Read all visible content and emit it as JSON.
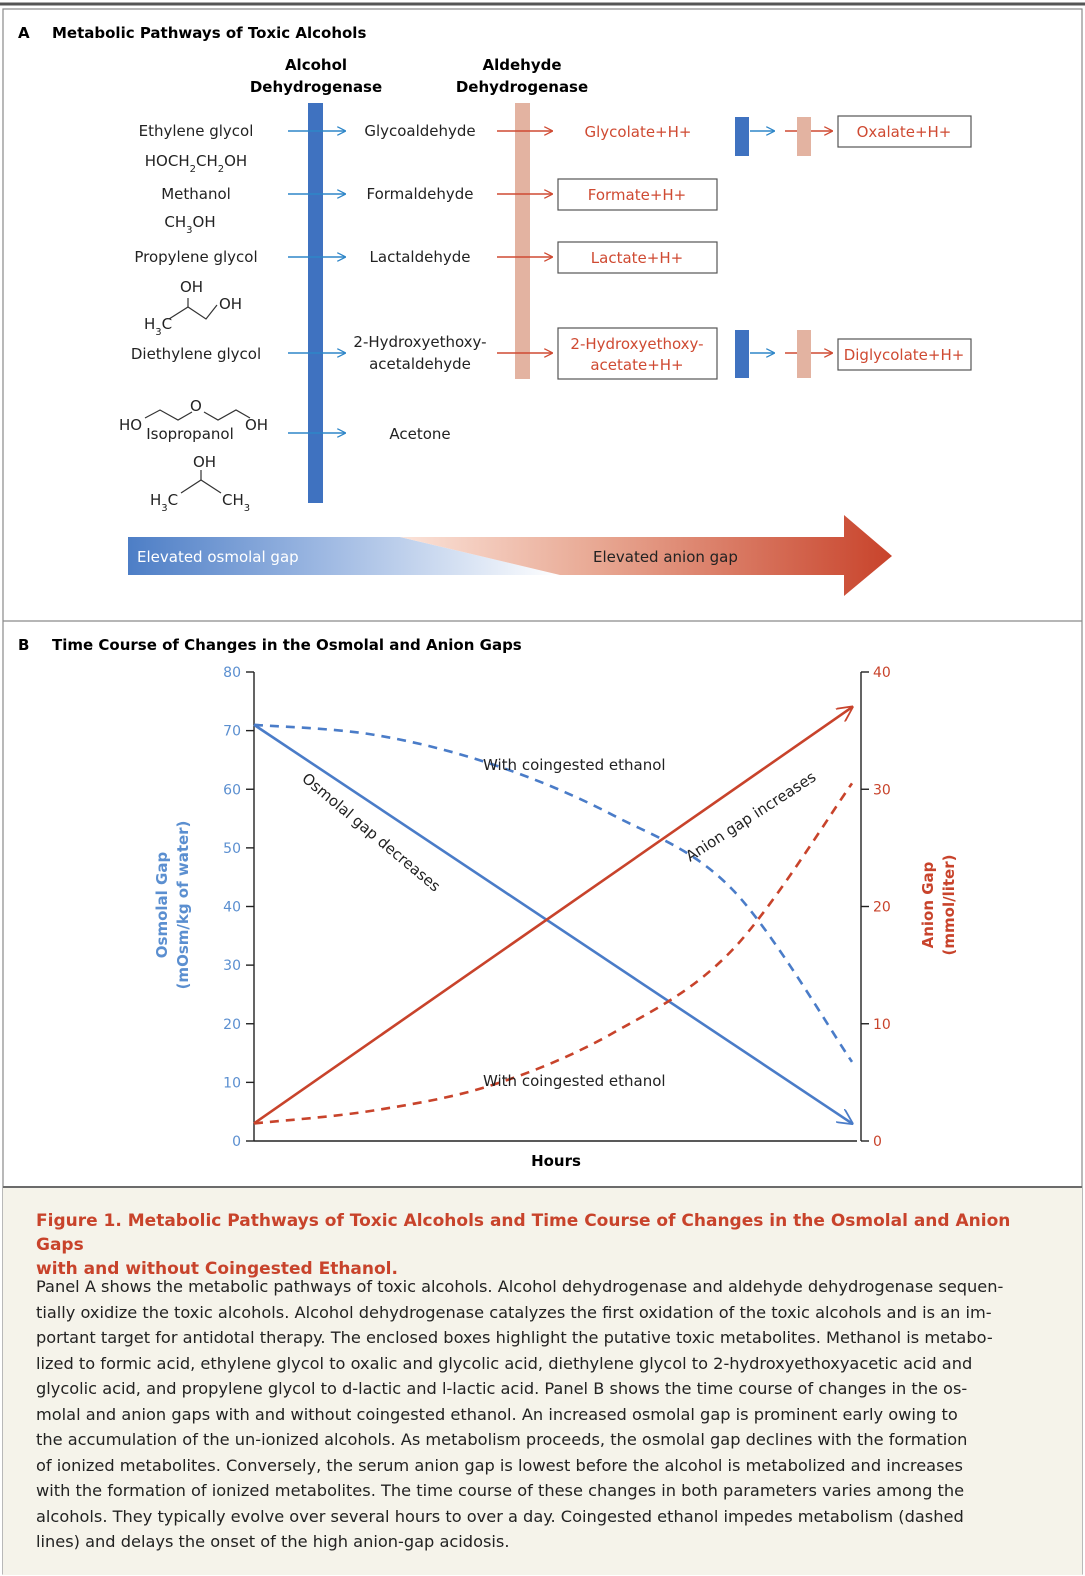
{
  "panel_a": {
    "letter": "A",
    "title": "Metabolic Pathways of Toxic Alcohols",
    "enzyme1_line1": "Alcohol",
    "enzyme1_line2": "Dehydrogenase",
    "enzyme2_line1": "Aldehyde",
    "enzyme2_line2": "Dehydrogenase",
    "alcohols": [
      {
        "name": "Ethylene glycol",
        "formula": "HOCH2CH2OH"
      },
      {
        "name": "Methanol",
        "formula": "CH3OH"
      },
      {
        "name": "Propylene glycol",
        "structure": [
          "OH",
          "OH",
          "H3C"
        ]
      },
      {
        "name": "Diethylene glycol",
        "structure": [
          "HO",
          "O",
          "OH"
        ]
      },
      {
        "name": "Isopropanol",
        "structure": [
          "OH",
          "H3C",
          "CH3"
        ]
      }
    ],
    "aldehydes": [
      "Glycoaldehyde",
      "Formaldehyde",
      "Lactaldehyde",
      "2-Hydroxyethoxy-",
      "acetaldehyde",
      "Acetone"
    ],
    "products": {
      "glycolate": "Glycolate+H+",
      "oxalate": "Oxalate+H+",
      "formate": "Formate+H+",
      "lactate": "Lactate+H+",
      "hea_line1": "2-Hydroxyethoxy-",
      "hea_line2": "acetate+H+",
      "diglycolate": "Diglycolate+H+"
    },
    "gradient_left": "Elevated osmolal gap",
    "gradient_right": "Elevated anion gap",
    "colors": {
      "adh": "#3f72c0",
      "aldh": "#e3b3a1",
      "accent": "#cf4a32",
      "arrow_blue": "#2e86c8"
    }
  },
  "panel_b": {
    "letter": "B",
    "title": "Time Course of Changes in the Osmolal and Anion Gaps",
    "annotations": {
      "ethanol_top": "With coingested ethanol",
      "ethanol_bottom": "With coingested ethanol",
      "osm_decreases": "Osmolal gap decreases",
      "anion_increases": "Anion gap increases"
    }
  },
  "chart_data": {
    "type": "line",
    "xlabel": "Hours",
    "left_axis": {
      "label_line1": "Osmolal Gap",
      "label_line2": "(mOsm/kg of water)",
      "ylim": [
        0,
        80
      ],
      "ticks": [
        "0",
        "10",
        "20",
        "30",
        "40",
        "50",
        "60",
        "70",
        "80"
      ],
      "color": "#5b8fd0"
    },
    "right_axis": {
      "label_line1": "Anion Gap",
      "label_line2": "(mmol/liter)",
      "ylim": [
        0,
        40
      ],
      "ticks": [
        "0",
        "10",
        "20",
        "30",
        "40"
      ],
      "color": "#c8432b"
    },
    "x": [
      0,
      0.2,
      0.4,
      0.6,
      0.8,
      1.0
    ],
    "series": [
      {
        "axis": "left",
        "style": "solid",
        "color": "#4a7cc8",
        "values": [
          71,
          57.4,
          43.8,
          30.2,
          16.6,
          3
        ]
      },
      {
        "axis": "left",
        "style": "dashed",
        "color": "#4a7cc8",
        "values": [
          71,
          69.3,
          64.2,
          55.6,
          42.9,
          13.5
        ]
      },
      {
        "axis": "right",
        "style": "solid",
        "color": "#c8432b",
        "values": [
          1.5,
          8.6,
          15.7,
          22.8,
          29.9,
          37
        ]
      },
      {
        "axis": "right",
        "style": "dashed",
        "color": "#c8432b",
        "values": [
          1.5,
          2.6,
          4.8,
          9.2,
          16.3,
          30.5
        ]
      }
    ]
  },
  "caption": {
    "title_line1": "Figure 1. Metabolic Pathways of Toxic Alcohols and Time Course of Changes in the Osmolal and Anion Gaps",
    "title_line2": "with and without Coingested Ethanol.",
    "lines": [
      "Panel A shows the metabolic pathways of toxic alcohols. Alcohol dehydrogenase and aldehyde dehydrogenase sequen-",
      "tially oxidize the toxic alcohols. Alcohol dehydrogenase catalyzes the first oxidation of the toxic alcohols and is an im-",
      "portant target for antidotal therapy. The enclosed boxes highlight the putative toxic metabolites. Methanol is metabo-",
      "lized to formic acid, ethylene glycol to oxalic and glycolic acid, diethylene glycol to 2-hydroxyethoxyacetic acid and",
      "glycolic acid, and propylene glycol to d-lactic and l-lactic acid. Panel B shows the time course of changes in the os-",
      "molal and anion gaps with and without coingested ethanol. An increased osmolal gap is prominent early owing to",
      "the accumulation of the un-ionized alcohols. As metabolism proceeds, the osmolal gap declines with the formation",
      "of ionized metabolites. Conversely, the serum anion gap is lowest before the alcohol is metabolized and increases",
      "with the formation of ionized metabolites. The time course of these changes in both parameters varies among the",
      "alcohols. They typically evolve over several hours to over a day. Coingested ethanol impedes metabolism (dashed",
      "lines) and delays the onset of the high anion-gap acidosis."
    ]
  }
}
